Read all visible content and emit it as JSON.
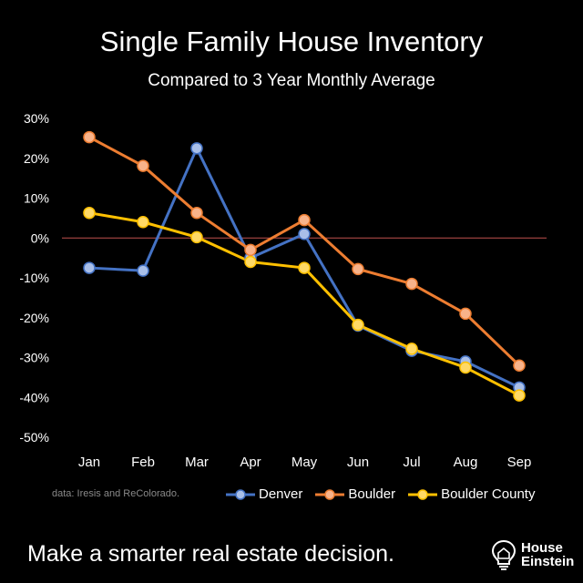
{
  "chart_data": {
    "type": "line",
    "title": "Single Family House Inventory",
    "subtitle": "Compared to 3 Year Monthly Average",
    "categories": [
      "Jan",
      "Feb",
      "Mar",
      "Apr",
      "May",
      "Jun",
      "Jul",
      "Aug",
      "Sep"
    ],
    "y_ticks": [
      "30%",
      "20%",
      "10%",
      "0%",
      "-10%",
      "-20%",
      "-30%",
      "-40%",
      "-50%"
    ],
    "ylim": [
      -50,
      30
    ],
    "y_unit": "%",
    "grid": false,
    "zero_line_color": "#c0504d",
    "legend_position": "bottom",
    "series": [
      {
        "name": "Denver",
        "color": "#4472c4",
        "marker_color": "#a9bfe8",
        "values": [
          -7.5,
          -8.2,
          22.5,
          -5,
          1,
          -22,
          -28.3,
          -31,
          -37.5
        ]
      },
      {
        "name": "Boulder",
        "color": "#ed7d31",
        "marker_color": "#f8b38a",
        "values": [
          25.3,
          18.1,
          6.3,
          -3,
          4.5,
          -7.8,
          -11.5,
          -19,
          -32
        ]
      },
      {
        "name": "Boulder County",
        "color": "#ffc000",
        "marker_color": "#ffd966",
        "values": [
          6.3,
          4,
          0.2,
          -6,
          -7.5,
          -21.8,
          -27.8,
          -32.5,
          -39.5
        ]
      }
    ]
  },
  "source_note": "data: Iresis and ReColorado.",
  "tagline": "Make a smarter real estate decision.",
  "brand": {
    "line1": "House",
    "line2": "Einstein",
    "icon": "lightbulb-house-icon"
  }
}
